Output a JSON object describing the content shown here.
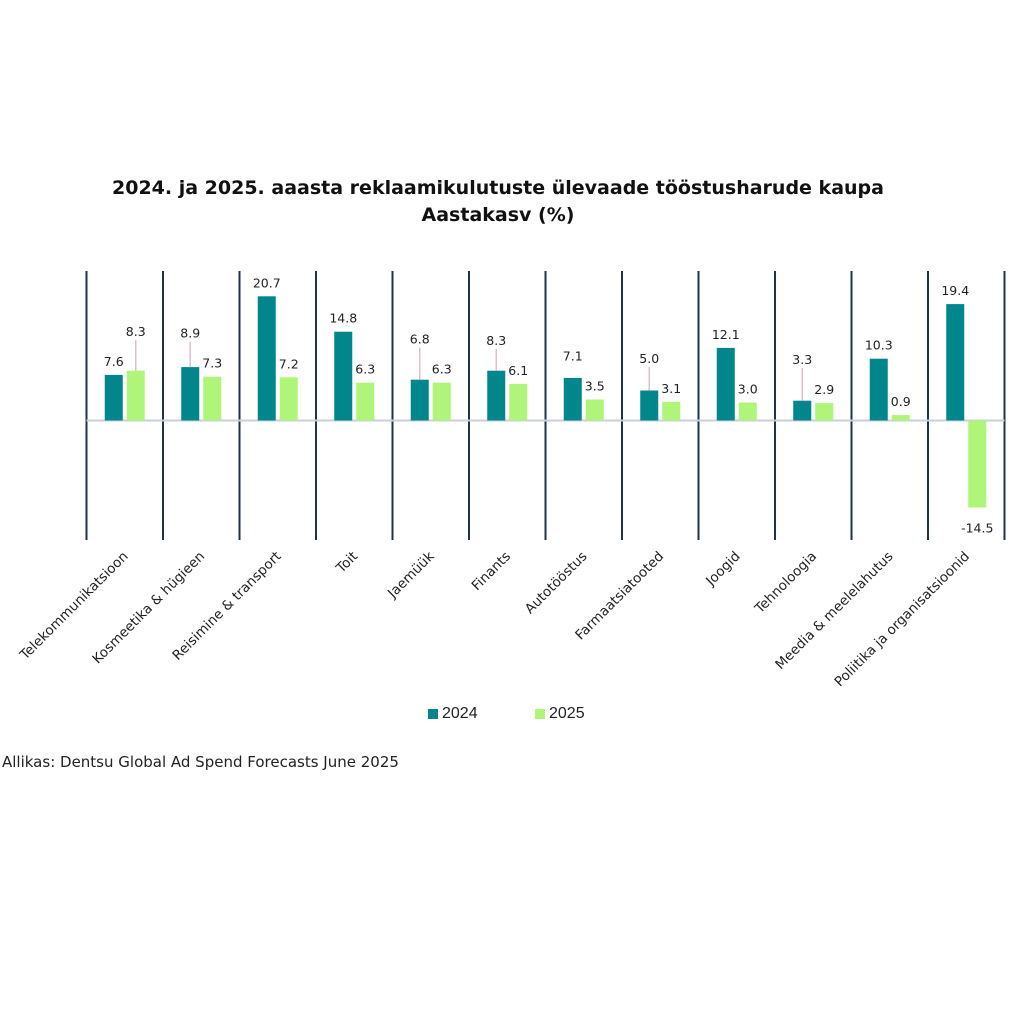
{
  "chart_data": {
    "type": "bar",
    "title": "2024. ja 2025. aaasta reklaamikulutuste ülevaade tööstusharude kaupa",
    "subtitle": "Aastakasv (%)",
    "categories": [
      "Telekommunikatsioon",
      "Kosmeetika & hügieen",
      "Reisimine & transport",
      "Toit",
      "Jaemüük",
      "Finants",
      "Autotööstus",
      "Farmaatsiatooted",
      "Joogid",
      "Tehnoloogia",
      "Meedia & meelelahutus",
      "Poliitika ja organisatsioonid"
    ],
    "series": [
      {
        "name": "2024",
        "color": "#00868b",
        "values": [
          7.6,
          8.9,
          20.7,
          14.8,
          6.8,
          8.3,
          7.1,
          5.0,
          12.1,
          3.3,
          10.3,
          19.4
        ],
        "labels": [
          "7.6",
          "8.9",
          "20.7",
          "14.8",
          "6.8",
          "8.3",
          "7.1",
          "5.0",
          "12.1",
          "3.3",
          "10.3",
          "19.4"
        ]
      },
      {
        "name": "2025",
        "color": "#aef57a",
        "values": [
          8.3,
          7.3,
          7.2,
          6.3,
          6.3,
          6.1,
          3.5,
          3.1,
          3.0,
          2.9,
          0.9,
          -14.5
        ],
        "labels": [
          "8.3",
          "7.3",
          "7.2",
          "6.3",
          "6.3",
          "6.1",
          "3.5",
          "3.1",
          "3.0",
          "2.9",
          "0.9",
          "-14.5"
        ]
      }
    ],
    "ylim": [
      -20,
      25
    ],
    "xlabel": "",
    "ylabel": "",
    "legend": "bottom",
    "source": "Allikas:  Dentsu Global Ad Spend Forecasts June 2025"
  }
}
